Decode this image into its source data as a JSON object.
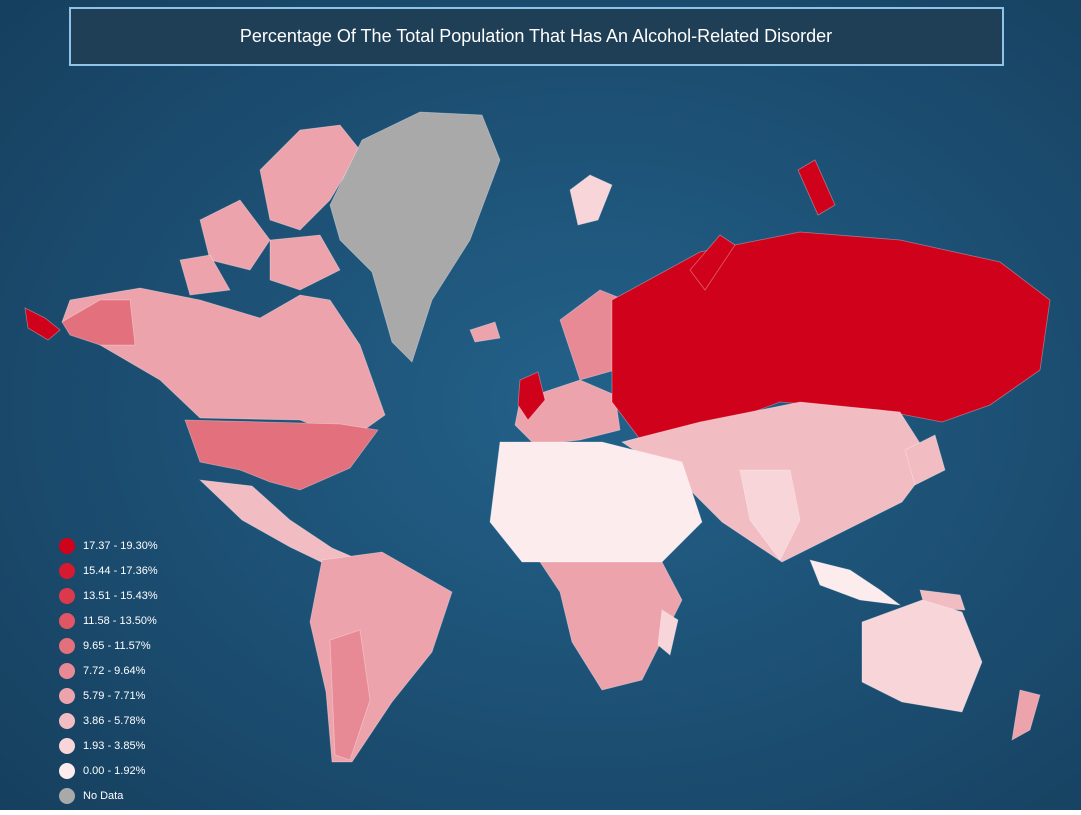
{
  "title": "Percentage Of The Total Population That Has An Alcohol-Related Disorder",
  "legend": [
    {
      "label": "17.37 - 19.30%",
      "color": "#d0021b"
    },
    {
      "label": "15.44 - 17.36%",
      "color": "#d71a30"
    },
    {
      "label": "13.51 - 15.43%",
      "color": "#dc3a4c"
    },
    {
      "label": "11.58 - 13.50%",
      "color": "#e05665"
    },
    {
      "label": "9.65 - 11.57%",
      "color": "#e2707d"
    },
    {
      "label": "7.72 - 9.64%",
      "color": "#e88a95"
    },
    {
      "label": "5.79 - 7.71%",
      "color": "#eda3ac"
    },
    {
      "label": "3.86 - 5.78%",
      "color": "#f2bcc3"
    },
    {
      "label": "1.93 - 3.85%",
      "color": "#f7d5d9"
    },
    {
      "label": "0.00 - 1.92%",
      "color": "#fcecee"
    },
    {
      "label": "No Data",
      "color": "#a9a9a9"
    }
  ]
}
